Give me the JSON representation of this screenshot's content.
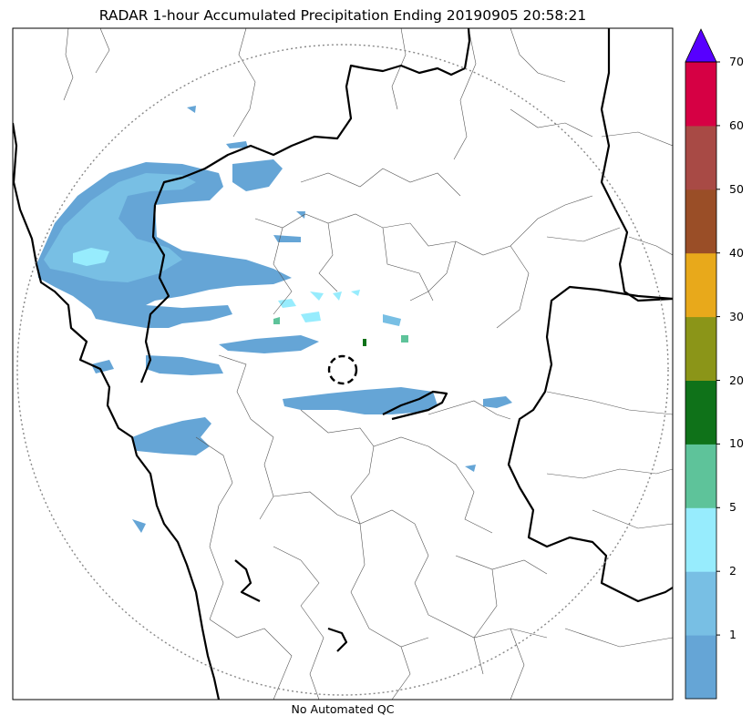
{
  "title": "RADAR 1-hour Accumulated Precipitation Ending 20190905 20:58:21",
  "footer": "No Automated QC",
  "colorbar": {
    "ticks": [
      "1",
      "2",
      "5",
      "10",
      "20",
      "30",
      "40",
      "50",
      "60",
      "70"
    ],
    "bands": [
      {
        "label": "0-1",
        "color": "#65a5d6"
      },
      {
        "label": "1-2",
        "color": "#78bfe4"
      },
      {
        "label": "2-5",
        "color": "#97ecfd"
      },
      {
        "label": "5-10",
        "color": "#5ec39a"
      },
      {
        "label": "10-20",
        "color": "#0f7219"
      },
      {
        "label": "20-30",
        "color": "#8b9518"
      },
      {
        "label": "30-40",
        "color": "#e8a91b"
      },
      {
        "label": "40-50",
        "color": "#9a4e27"
      },
      {
        "label": "50-60",
        "color": "#a84a45"
      },
      {
        "label": "60-70",
        "color": "#d60044"
      }
    ],
    "extend_color": "#5700ff"
  },
  "colors": {
    "border_thick": "#000000",
    "border_thin": "#555555",
    "range_ring": "#888888"
  }
}
